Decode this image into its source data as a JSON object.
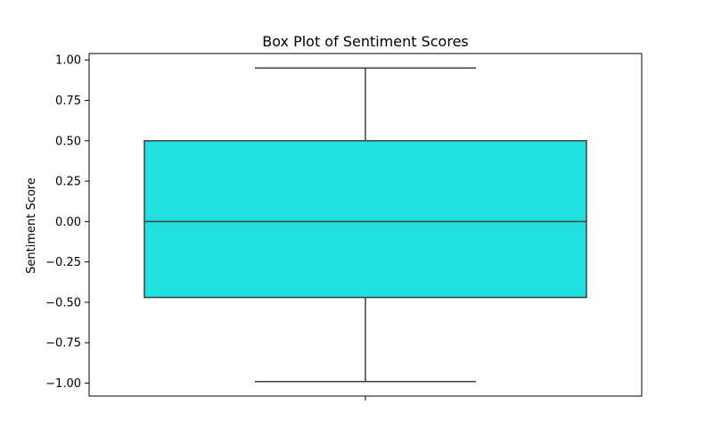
{
  "chart_data": {
    "type": "box",
    "title": "Box Plot of Sentiment Scores",
    "xlabel": "",
    "ylabel": "Sentiment Score",
    "ylim": [
      -1.08,
      1.04
    ],
    "yticks": [
      1.0,
      0.75,
      0.5,
      0.25,
      0.0,
      -0.25,
      -0.5,
      -0.75,
      -1.0
    ],
    "ytick_labels": [
      "1.00",
      "0.75",
      "0.50",
      "0.25",
      "0.00",
      "−0.25",
      "−0.50",
      "−0.75",
      "−1.00"
    ],
    "grid": false,
    "box": {
      "whisker_low": -0.99,
      "q1": -0.47,
      "median": 0.0,
      "q3": 0.5,
      "whisker_high": 0.95
    },
    "colors": {
      "box_fill": "#22e0e0",
      "box_edge": "#3f3f3f",
      "axis": "#000000"
    }
  }
}
